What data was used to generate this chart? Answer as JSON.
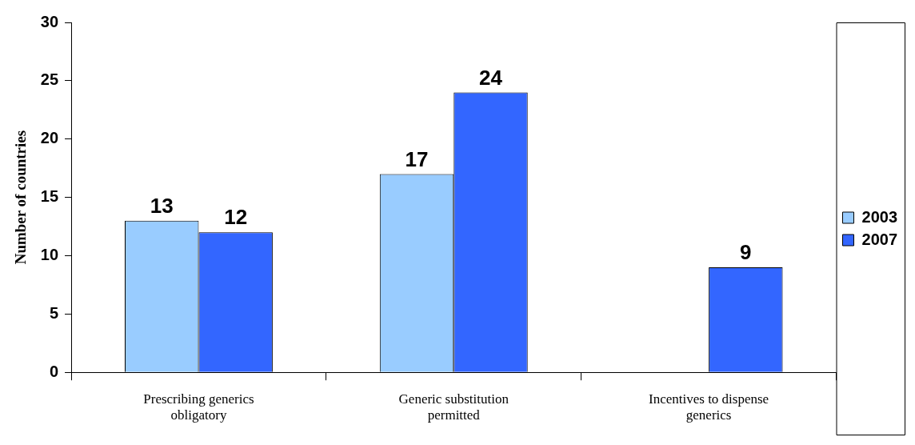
{
  "chart_data": {
    "type": "bar",
    "ylabel": "Number of countries",
    "categories": [
      "Prescribing generics obligatory",
      "Generic substitution permitted",
      "Incentives to dispense generics"
    ],
    "series": [
      {
        "name": "2003",
        "color": "#99ccff",
        "values": [
          13,
          17,
          null
        ]
      },
      {
        "name": "2007",
        "color": "#3366ff",
        "values": [
          12,
          24,
          9
        ]
      }
    ],
    "ylim": [
      0,
      30
    ],
    "yticks": [
      0,
      5,
      10,
      15,
      20,
      25,
      30
    ],
    "grid": false,
    "legend": "right",
    "data_labels": true
  }
}
